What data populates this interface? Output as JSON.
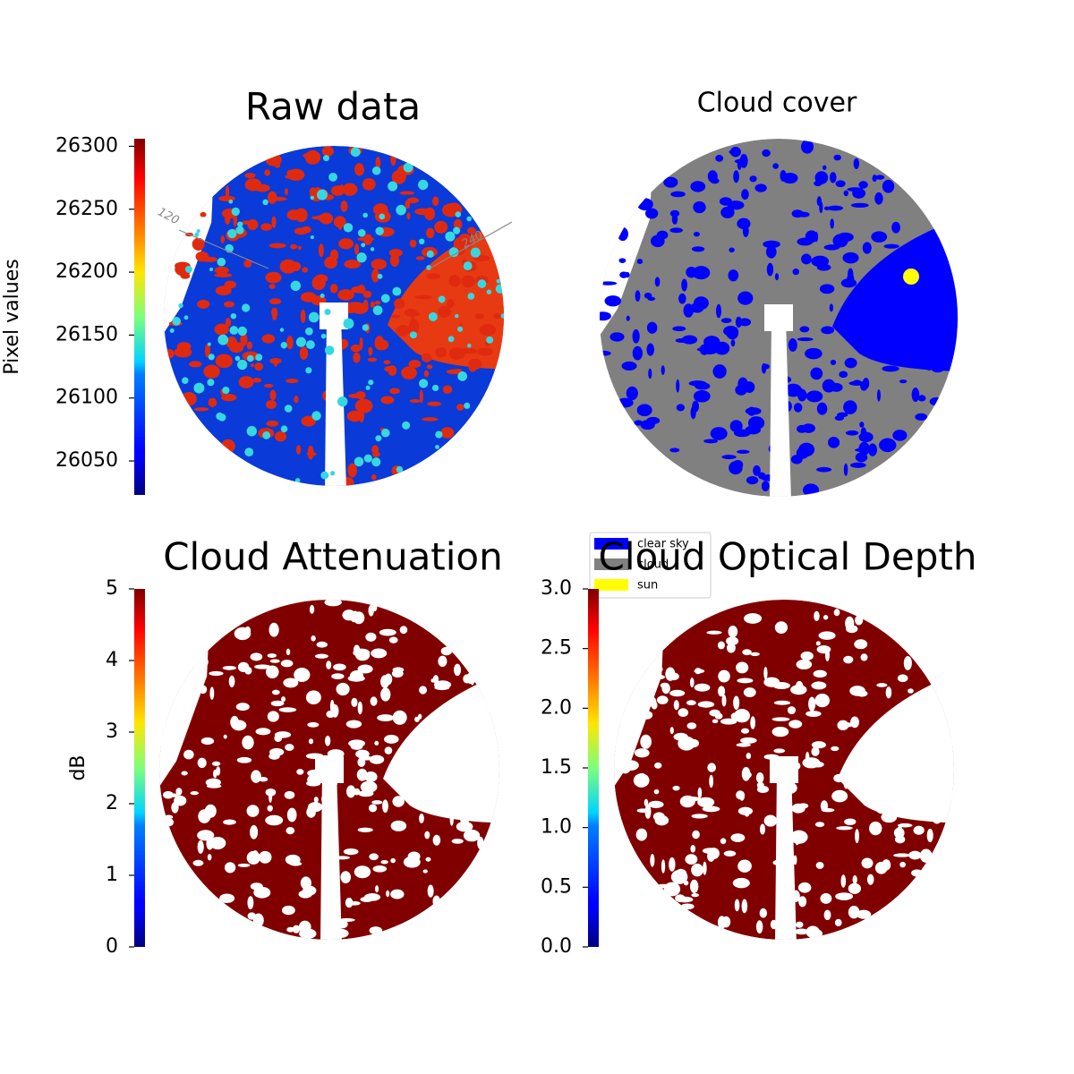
{
  "chart_data": [
    {
      "type": "image",
      "title": "Raw data",
      "annotations": [
        "120",
        "240"
      ],
      "colorbar": {
        "label": "Pixel values",
        "cmap": "jet",
        "clim": [
          26023,
          26306
        ],
        "ticks": [
          26050,
          26100,
          26150,
          26200,
          26250,
          26300
        ]
      }
    },
    {
      "type": "image",
      "title": "Cloud cover",
      "legend": [
        {
          "name": "clear sky",
          "color": "#0000ff"
        },
        {
          "name": "cloud",
          "color": "#808080"
        },
        {
          "name": "sun",
          "color": "#ffff00"
        }
      ]
    },
    {
      "type": "image",
      "title": "Cloud Attenuation",
      "colorbar": {
        "label": "dB",
        "cmap": "jet",
        "clim": [
          0,
          5
        ],
        "ticks": [
          0,
          1,
          2,
          3,
          4,
          5
        ]
      }
    },
    {
      "type": "image",
      "title": "Cloud Optical Depth",
      "colorbar": {
        "cmap": "jet",
        "clim": [
          0,
          3
        ],
        "ticks": [
          {
            "value": 0,
            "label": "0.0"
          },
          0.5,
          {
            "value": 1,
            "label": "1.0"
          },
          1.5,
          {
            "value": 2,
            "label": "2.0"
          },
          2.5,
          {
            "value": 3,
            "label": "3.0"
          }
        ]
      }
    }
  ]
}
